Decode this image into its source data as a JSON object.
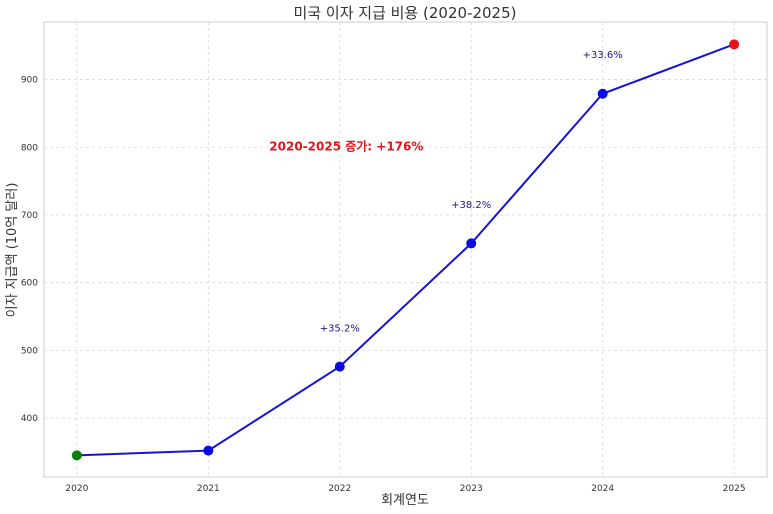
{
  "chart_data": {
    "type": "line",
    "title": "미국 이자 지급 비용 (2020-2025)",
    "xlabel": "회계연도",
    "ylabel": "이자 지급액 (10억 달러)",
    "x": [
      "2020",
      "2021",
      "2022",
      "2023",
      "2024",
      "2025"
    ],
    "series": [
      {
        "values": [
          345,
          352,
          476,
          658,
          879,
          952
        ],
        "color": "#1515d8",
        "point_colors": [
          "#0a7f0a",
          "#0b0bdf",
          "#0b0bdf",
          "#0b0bdf",
          "#0b0bdf",
          "#e8121a"
        ]
      }
    ],
    "ylim": [
      313,
      985
    ],
    "xlim": [
      -0.25,
      5.25
    ],
    "yticks": [
      400,
      500,
      600,
      700,
      800,
      900
    ],
    "grid": true,
    "annotations": [
      {
        "text": "+35.2%",
        "x": 2,
        "y": 528
      },
      {
        "text": "+38.2%",
        "x": 3,
        "y": 710
      },
      {
        "text": "+33.6%",
        "x": 4,
        "y": 932
      }
    ],
    "highlight": {
      "text": "2020-2025 증가: +176%",
      "x": 2.05,
      "y": 801,
      "color": "#e8121a"
    }
  }
}
